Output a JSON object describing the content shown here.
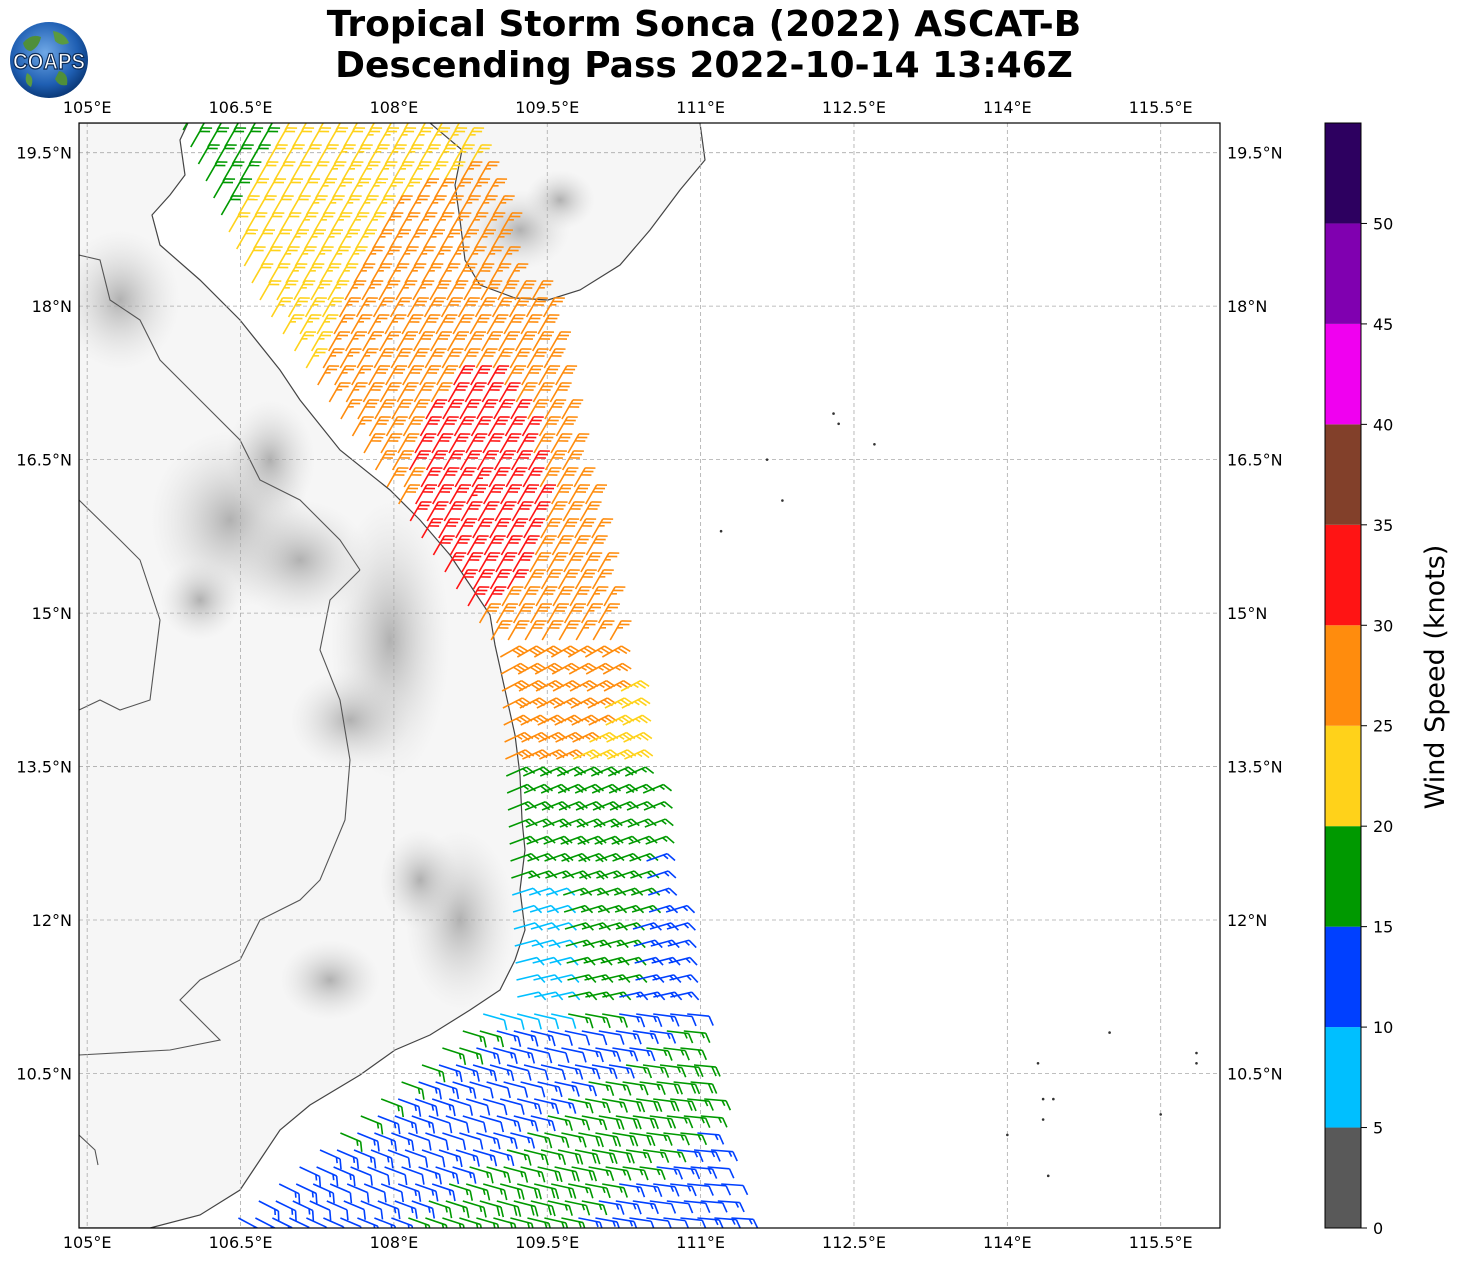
{
  "title": {
    "line1": "Tropical Storm Sonca (2022) ASCAT-B",
    "line2": "Descending Pass 2022-10-14 13:46Z"
  },
  "logo": {
    "text": "COAPS"
  },
  "map": {
    "lon_ticks": [
      "105°E",
      "106.5°E",
      "108°E",
      "109.5°E",
      "111°E",
      "112.5°E",
      "114°E",
      "115.5°E"
    ],
    "lat_ticks": [
      "19.5°N",
      "18°N",
      "16.5°N",
      "15°N",
      "13.5°N",
      "12°N",
      "10.5°N"
    ],
    "extent": {
      "lon_min": 104.92,
      "lon_max": 116.08,
      "lat_min": 8.99,
      "lat_max": 19.79
    },
    "gridlines": true
  },
  "colorbar": {
    "label": "Wind Speed (knots)",
    "ticks": [
      "0",
      "5",
      "10",
      "15",
      "20",
      "25",
      "30",
      "35",
      "40",
      "45",
      "50"
    ],
    "bins": [
      {
        "min": 0,
        "max": 5,
        "color": "#595959"
      },
      {
        "min": 5,
        "max": 10,
        "color": "#00bfff"
      },
      {
        "min": 10,
        "max": 15,
        "color": "#0040ff"
      },
      {
        "min": 15,
        "max": 20,
        "color": "#009900"
      },
      {
        "min": 20,
        "max": 25,
        "color": "#ffd21a"
      },
      {
        "min": 25,
        "max": 30,
        "color": "#ff8c0d"
      },
      {
        "min": 30,
        "max": 35,
        "color": "#ff1414"
      },
      {
        "min": 35,
        "max": 40,
        "color": "#82402a"
      },
      {
        "min": 40,
        "max": 45,
        "color": "#f000f0"
      },
      {
        "min": 45,
        "max": 50,
        "color": "#8000b0"
      },
      {
        "min": 50,
        "max": 55,
        "color": "#2d0060"
      }
    ]
  }
}
